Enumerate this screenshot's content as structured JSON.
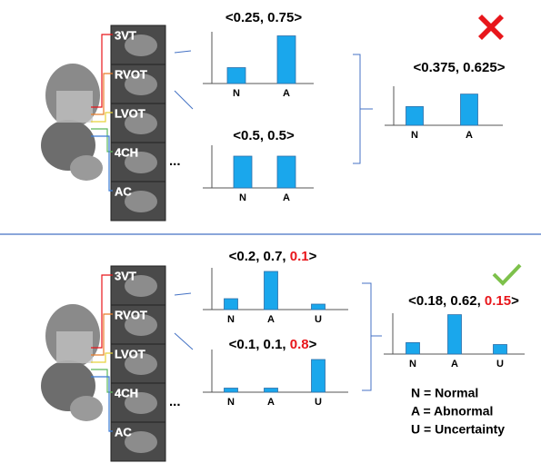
{
  "panels": [
    {
      "slices": [
        "3VT",
        "RVOT",
        "LVOT",
        "4CH",
        "AC"
      ],
      "ellipsis": "...",
      "charts": [
        {
          "label": [
            "<0.25, 0.75>"
          ],
          "label_colors": [
            "#000000"
          ],
          "categories": [
            "N",
            "A"
          ],
          "values": [
            0.25,
            0.75
          ],
          "color": "#1aa7ec"
        },
        {
          "label": [
            "<0.5, 0.5>"
          ],
          "label_colors": [
            "#000000"
          ],
          "categories": [
            "N",
            "A"
          ],
          "values": [
            0.5,
            0.5
          ],
          "color": "#1aa7ec"
        },
        {
          "label": [
            "<0.375, 0.625>"
          ],
          "label_colors": [
            "#000000"
          ],
          "categories": [
            "N",
            "A"
          ],
          "values": [
            0.375,
            0.625
          ],
          "color": "#1aa7ec"
        }
      ]
    },
    {
      "slices": [
        "3VT",
        "RVOT",
        "LVOT",
        "4CH",
        "AC"
      ],
      "ellipsis": "...",
      "charts": [
        {
          "label": [
            "<0.2, 0.7, ",
            "0.1",
            ">"
          ],
          "label_colors": [
            "#000000",
            "#e8161b",
            "#000000"
          ],
          "categories": [
            "N",
            "A",
            "U"
          ],
          "values": [
            0.2,
            0.7,
            0.1
          ],
          "color": "#1aa7ec"
        },
        {
          "label": [
            "<0.1, 0.1, ",
            "0.8",
            ">"
          ],
          "label_colors": [
            "#000000",
            "#e8161b",
            "#000000"
          ],
          "categories": [
            "N",
            "A",
            "U"
          ],
          "values": [
            0.1,
            0.1,
            0.8
          ],
          "color": "#1aa7ec"
        },
        {
          "label": [
            "<0.18, 0.62, ",
            "0.15",
            ">"
          ],
          "label_colors": [
            "#000000",
            "#e8161b",
            "#000000"
          ],
          "categories": [
            "N",
            "A",
            "U"
          ],
          "values": [
            0.18,
            0.62,
            0.15
          ],
          "color": "#1aa7ec"
        }
      ]
    }
  ],
  "legend": [
    "N = Normal",
    "A = Abnormal",
    "U = Uncertainty"
  ]
}
